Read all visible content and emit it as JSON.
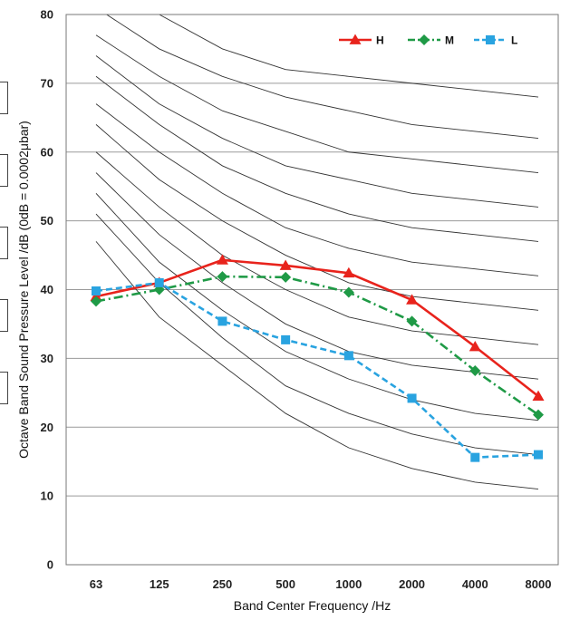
{
  "chart_data": {
    "type": "line",
    "title": "",
    "xlabel": "Band Center Frequency /Hz",
    "ylabel": "Octave Band Sound Pressure Level /dB (0dB = 0.0002μbar)",
    "categories": [
      "63",
      "125",
      "250",
      "500",
      "1000",
      "2000",
      "4000",
      "8000"
    ],
    "ylim": [
      0,
      80
    ],
    "yticks": [
      "0",
      "10",
      "20",
      "30",
      "40",
      "50",
      "60",
      "70",
      "80"
    ],
    "grid": "horizontal",
    "legend_position": "top-right",
    "series": [
      {
        "name": "H",
        "color": "#e8231c",
        "dash": "solid",
        "marker": "triangle",
        "values": [
          39,
          41,
          44.3,
          43.5,
          42.4,
          38.5,
          31.7,
          24.5
        ]
      },
      {
        "name": "M",
        "color": "#1f9a46",
        "dash": "dashdot",
        "marker": "diamond",
        "values": [
          38.3,
          40,
          41.9,
          41.8,
          39.6,
          35.4,
          28.2,
          21.8
        ]
      },
      {
        "name": "L",
        "color": "#29a3e0",
        "dash": "dashed",
        "marker": "square",
        "values": [
          39.8,
          41,
          35.4,
          32.7,
          30.4,
          24.2,
          15.6,
          16
        ]
      }
    ],
    "reference_curves": [
      [
        47,
        36,
        29,
        22,
        17,
        14,
        12,
        11
      ],
      [
        51,
        41,
        33,
        26,
        22,
        19,
        17,
        16
      ],
      [
        54,
        44,
        37,
        31,
        27,
        24,
        22,
        21
      ],
      [
        57,
        48,
        41,
        35,
        31,
        29,
        28,
        27
      ],
      [
        60,
        52,
        45,
        40,
        36,
        34,
        33,
        32
      ],
      [
        64,
        56,
        50,
        45,
        41,
        39,
        38,
        37
      ],
      [
        67,
        60,
        54,
        49,
        46,
        44,
        43,
        42
      ],
      [
        71,
        64,
        58,
        54,
        51,
        49,
        48,
        47
      ],
      [
        74,
        67,
        62,
        58,
        56,
        54,
        53,
        52
      ],
      [
        77,
        71,
        66,
        63,
        60,
        59,
        58,
        57
      ],
      [
        81,
        75,
        71,
        68,
        66,
        64,
        63,
        62
      ],
      [
        85,
        80,
        75,
        72,
        71,
        70,
        69,
        68
      ]
    ],
    "reference_color": "#333333"
  }
}
